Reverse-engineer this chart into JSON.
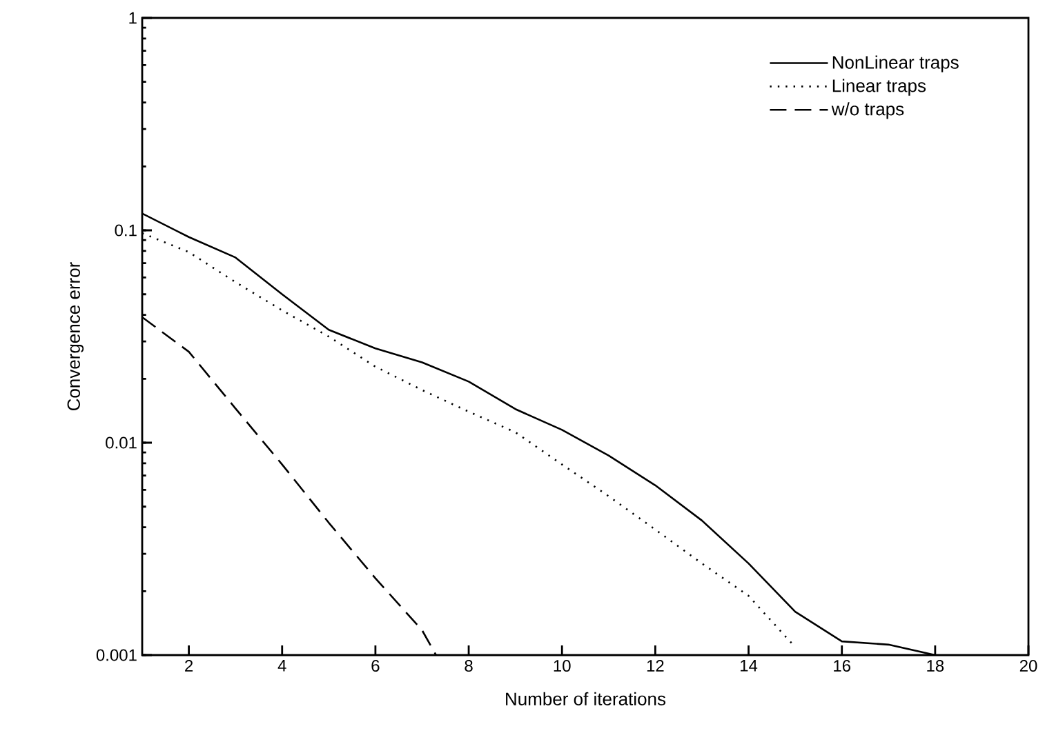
{
  "chart_data": {
    "type": "line",
    "xlabel": "Number of iterations",
    "ylabel": "Convergence error",
    "log": "y",
    "xlim": [
      1,
      20
    ],
    "xticks": [
      2,
      4,
      6,
      8,
      10,
      12,
      14,
      16,
      18,
      20
    ],
    "ylim": [
      0.001,
      1
    ],
    "yticks": [
      0.001,
      0.01,
      0.1,
      1
    ],
    "grid": false,
    "legend": "top right",
    "series": [
      {
        "name": "NonLinear traps",
        "color": "#000000",
        "line_style": "solid",
        "x": [
          1,
          2,
          3,
          4,
          5,
          6,
          7,
          8,
          9,
          10,
          11,
          12,
          13,
          14,
          15,
          16,
          17,
          18
        ],
        "values": [
          0.12,
          0.093,
          0.0745,
          0.05,
          0.034,
          0.0278,
          0.0239,
          0.0194,
          0.0144,
          0.0115,
          0.0087,
          0.0063,
          0.0043,
          0.0027,
          0.0016,
          0.00116,
          0.00112,
          0.001
        ]
      },
      {
        "name": "Linear traps",
        "color": "#000000",
        "line_style": "dotted",
        "x": [
          1,
          2,
          3,
          4,
          5,
          6,
          7,
          8,
          9,
          10,
          11,
          12,
          13,
          14,
          15
        ],
        "values": [
          0.097,
          0.079,
          0.057,
          0.042,
          0.0316,
          0.0228,
          0.0177,
          0.014,
          0.0112,
          0.0079,
          0.0056,
          0.0039,
          0.0027,
          0.0019,
          0.00109
        ]
      },
      {
        "name": "w/o traps",
        "color": "#000000",
        "line_style": "dashed",
        "x": [
          1,
          2,
          3,
          4,
          5,
          6,
          7,
          7.3
        ],
        "values": [
          0.039,
          0.0268,
          0.0145,
          0.0079,
          0.0042,
          0.0023,
          0.00131,
          0.001
        ]
      }
    ]
  }
}
